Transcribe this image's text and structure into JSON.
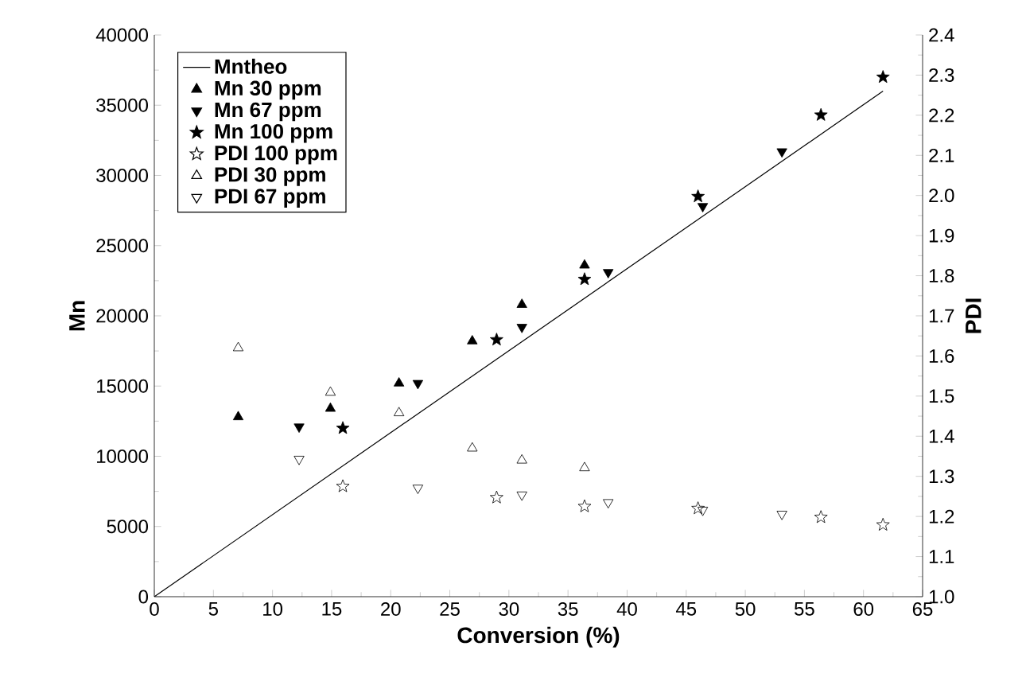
{
  "chart_data": {
    "type": "scatter",
    "xlabel": "Conversion (%)",
    "ylabel": "Mn",
    "y2label": "PDI",
    "xlim": [
      0,
      65
    ],
    "xticks": [
      0,
      5,
      10,
      15,
      20,
      25,
      30,
      35,
      40,
      45,
      50,
      55,
      60,
      65
    ],
    "ylim": [
      0,
      40000
    ],
    "yticks": [
      0,
      5000,
      10000,
      15000,
      20000,
      25000,
      30000,
      35000,
      40000
    ],
    "y2lim": [
      1.0,
      2.4
    ],
    "y2ticks": [
      {
        "value": 1.0,
        "label": "1.0"
      },
      1.1,
      1.2,
      1.3,
      1.4,
      1.5,
      1.6,
      1.7,
      1.8,
      1.9,
      {
        "value": 2.0,
        "label": "2.0"
      },
      2.1,
      2.2,
      2.3,
      2.4
    ],
    "legend": "top left",
    "grid": false,
    "series": [
      {
        "name": "Mntheo",
        "type": "line",
        "line_style": "solid",
        "marker": "none",
        "color": "#000000",
        "x": [
          0,
          61.65
        ],
        "values": [
          0,
          36000
        ]
      },
      {
        "name": "Mn 30 ppm",
        "marker": "triangle",
        "color": "#000000",
        "x": [
          7.1,
          14.9,
          20.7,
          26.9,
          31.1,
          36.4
        ],
        "values": [
          12800,
          13400,
          15200,
          18200,
          20800,
          23600
        ]
      },
      {
        "name": "Mn 67 ppm",
        "marker": "triangle-down",
        "color": "#000000",
        "x": [
          12.25,
          22.3,
          31.1,
          38.4,
          46.4,
          53.1
        ],
        "values": [
          12100,
          15200,
          19200,
          23100,
          27800,
          31700
        ]
      },
      {
        "name": "Mn 100 ppm",
        "marker": "star",
        "color": "#000000",
        "x": [
          15.95,
          28.96,
          36.4,
          46.0,
          56.4,
          61.65
        ],
        "values": [
          12000,
          18300,
          22600,
          28500,
          34300,
          37000
        ]
      },
      {
        "name": "PDI 100 ppm",
        "marker": "star-open",
        "axis": "y2",
        "color": "#000000",
        "x": [
          15.95,
          28.96,
          36.4,
          46.0,
          56.4,
          61.65
        ],
        "values": [
          1.275,
          1.247,
          1.225,
          1.22,
          1.198,
          1.179
        ]
      },
      {
        "name": "PDI 30 ppm",
        "marker": "triangle-open",
        "axis": "y2",
        "color": "#000000",
        "x": [
          7.1,
          14.9,
          20.7,
          26.9,
          31.1,
          36.4
        ],
        "values": [
          1.62,
          1.509,
          1.458,
          1.37,
          1.34,
          1.321
        ]
      },
      {
        "name": "PDI 67 ppm",
        "marker": "triangle-down-open",
        "axis": "y2",
        "color": "#000000",
        "x": [
          12.25,
          22.3,
          31.1,
          38.4,
          46.4,
          53.1
        ],
        "values": [
          1.343,
          1.271,
          1.254,
          1.235,
          1.216,
          1.206
        ]
      }
    ]
  }
}
